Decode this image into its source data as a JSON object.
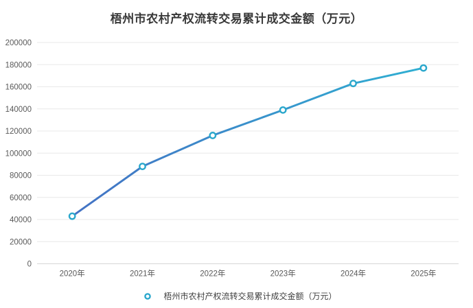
{
  "chart_data": {
    "type": "line",
    "title": "梧州市农村产权流转交易累计成交金额（万元）",
    "categories": [
      "2020年",
      "2021年",
      "2022年",
      "2023年",
      "2024年",
      "2025年"
    ],
    "series": [
      {
        "name": "梧州市农村产权流转交易累计成交金额（万元）",
        "values": [
          43000,
          88000,
          116000,
          139000,
          163000,
          177000
        ]
      }
    ],
    "xlabel": "",
    "ylabel": "",
    "ylim": [
      0,
      200000
    ],
    "ytick_step": 20000,
    "grid": "horizontal",
    "legend_position": "bottom",
    "legend_label": "梧州市农村产权流转交易累计成交金额（万元）",
    "colors": {
      "line_gradient_start": "#4472C4",
      "line_gradient_end": "#2FAFD2",
      "marker_stroke": "#2AA7CC",
      "marker_fill": "#FFFFFF",
      "grid_line": "#E8E8E8",
      "axis_line": "#D6D6D6",
      "tick_label": "#595959",
      "title": "#383838",
      "legend_text": "#404040"
    }
  }
}
